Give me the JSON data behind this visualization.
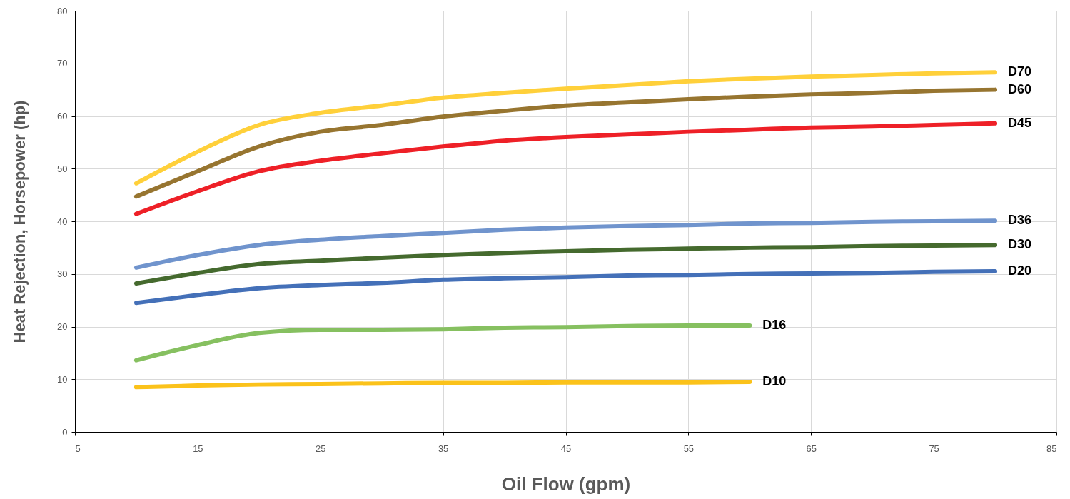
{
  "chart_data": {
    "type": "line",
    "xlabel": "Oil Flow (gpm)",
    "ylabel": "Heat Rejection, Horsepower (hp)",
    "x": [
      10,
      15,
      20,
      25,
      30,
      35,
      40,
      45,
      50,
      55,
      60,
      65,
      70,
      75,
      80
    ],
    "xlim": [
      5,
      85
    ],
    "xticks": [
      5,
      15,
      25,
      35,
      45,
      55,
      65,
      75,
      85
    ],
    "ylim": [
      0,
      80
    ],
    "yticks": [
      0,
      10,
      20,
      30,
      40,
      50,
      60,
      70,
      80
    ],
    "grid": true,
    "marker": "none",
    "line_style": "solid",
    "series": [
      {
        "name": "D70",
        "color": "#ffd03a",
        "values": [
          47.2,
          53.2,
          58.3,
          60.6,
          62,
          63.5,
          64.4,
          65.2,
          65.9,
          66.6,
          67.1,
          67.5,
          67.8,
          68.1,
          68.3
        ]
      },
      {
        "name": "D60",
        "color": "#977530",
        "values": [
          44.7,
          49.5,
          54.2,
          57,
          58.3,
          59.9,
          61,
          62,
          62.6,
          63.2,
          63.7,
          64.1,
          64.4,
          64.8,
          65
        ]
      },
      {
        "name": "D45",
        "color": "#ee2027",
        "values": [
          41.4,
          45.7,
          49.5,
          51.5,
          52.9,
          54.2,
          55.3,
          56,
          56.5,
          57,
          57.4,
          57.8,
          58,
          58.3,
          58.6
        ]
      },
      {
        "name": "D36",
        "color": "#7094cd",
        "values": [
          31.2,
          33.6,
          35.5,
          36.5,
          37.2,
          37.8,
          38.4,
          38.8,
          39.1,
          39.3,
          39.6,
          39.7,
          39.9,
          40,
          40.1
        ]
      },
      {
        "name": "D30",
        "color": "#456a2e",
        "values": [
          28.2,
          30.2,
          31.9,
          32.5,
          33.1,
          33.6,
          34,
          34.3,
          34.6,
          34.8,
          35,
          35.1,
          35.3,
          35.4,
          35.5
        ]
      },
      {
        "name": "D20",
        "color": "#4470b8",
        "values": [
          24.5,
          26,
          27.3,
          27.9,
          28.3,
          28.9,
          29.2,
          29.4,
          29.7,
          29.8,
          30,
          30.1,
          30.2,
          30.4,
          30.5
        ]
      },
      {
        "name": "D16",
        "color": "#86c060",
        "values": [
          13.6,
          16.5,
          18.8,
          19.4,
          19.4,
          19.5,
          19.8,
          19.9,
          20.1,
          20.2,
          20.2,
          null,
          null,
          null,
          null
        ]
      },
      {
        "name": "D10",
        "color": "#fbc21a",
        "values": [
          8.5,
          8.8,
          9.0,
          9.1,
          9.2,
          9.3,
          9.3,
          9.4,
          9.4,
          9.4,
          9.5,
          null,
          null,
          null,
          null
        ]
      }
    ]
  }
}
